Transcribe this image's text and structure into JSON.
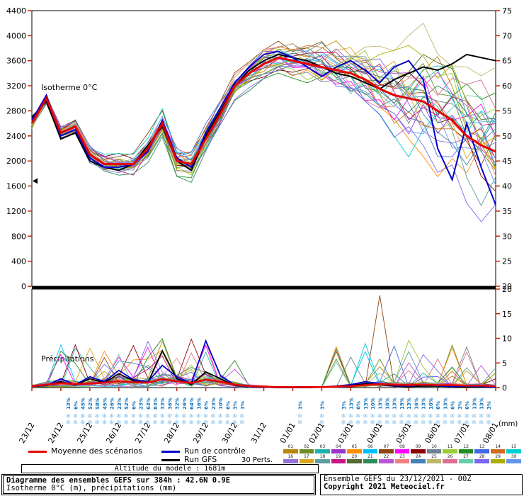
{
  "colors": {
    "mean": "#e60000",
    "control": "#0000cc",
    "gfs": "#000000",
    "tick": "#cc2200",
    "axis": "#000000",
    "snowflake": "#8ec6f0",
    "snow_pct_text": "#1573bb"
  },
  "legend": {
    "mean_label": "Moyenne des scénarios",
    "control_label": "Run de contrôle",
    "gfs_label": "Run GFS",
    "perts_label": "30 Perts.",
    "pert_numbers": [
      "01",
      "02",
      "03",
      "04",
      "05",
      "06",
      "07",
      "08",
      "09",
      "10",
      "11",
      "12",
      "13",
      "14",
      "15",
      "16",
      "17",
      "18",
      "19",
      "20",
      "21",
      "22",
      "23",
      "24",
      "25",
      "26",
      "27",
      "28",
      "29",
      "30"
    ]
  },
  "footer": {
    "altitude_label": "Altitude du modele : 1681m",
    "left_line1": "Diagramme des ensembles GEFS sur 384h : 42.6N 0.9E",
    "left_line2": "Isotherme 0°C (m), précipitations (mm)",
    "right_line1": "Ensemble GEFS du 23/12/2021 - 00Z",
    "right_line2": "Copyright 2021 Meteociel.fr"
  },
  "chart_data": {
    "type": "line",
    "title": "Diagramme des ensembles GEFS sur 384h : 42.6N 0.9E",
    "x_total_hours": 384,
    "x_step_hours": 12,
    "x_tick_labels": [
      "23/12",
      "24/12",
      "25/12",
      "26/12",
      "27/12",
      "28/12",
      "29/12",
      "30/12",
      "31/12",
      "01/01",
      "02/01",
      "03/01",
      "04/01",
      "05/01",
      "06/01",
      "07/01",
      "08/01"
    ],
    "top": {
      "label": "Isotherme 0°C",
      "ylabel_unit": "m",
      "ylim": [
        0,
        4400
      ],
      "yticks": [
        0,
        400,
        800,
        1200,
        1600,
        2000,
        2400,
        2800,
        3200,
        3600,
        4000,
        4400
      ],
      "right_ylim": [
        20,
        75
      ],
      "right_yticks": [
        20,
        25,
        30,
        35,
        40,
        45,
        50,
        55,
        60,
        65,
        70,
        75
      ],
      "model_altitude_m": 1681,
      "mean": [
        2600,
        3000,
        2450,
        2550,
        2100,
        1950,
        1950,
        1950,
        2200,
        2600,
        2000,
        1950,
        2350,
        2750,
        3200,
        3400,
        3550,
        3650,
        3600,
        3550,
        3500,
        3450,
        3400,
        3300,
        3150,
        3050,
        3000,
        2950,
        2800,
        2650,
        2400,
        2250,
        2150
      ],
      "control": [
        2650,
        3050,
        2400,
        2500,
        2050,
        1900,
        1900,
        1950,
        2150,
        2650,
        2050,
        1900,
        2450,
        2850,
        3250,
        3500,
        3700,
        3750,
        3650,
        3500,
        3350,
        3500,
        3600,
        3450,
        3250,
        3500,
        3600,
        3300,
        2200,
        1700,
        2600,
        1900,
        1300
      ],
      "gfs": [
        2700,
        2950,
        2350,
        2450,
        2000,
        1900,
        1850,
        1950,
        2250,
        2550,
        2000,
        1850,
        2400,
        2800,
        3200,
        3450,
        3600,
        3700,
        3650,
        3600,
        3500,
        3400,
        3350,
        3250,
        3150,
        3300,
        3400,
        3500,
        3450,
        3550,
        3700,
        3650,
        3600
      ],
      "member_spread": [
        120,
        130,
        140,
        150,
        160,
        170,
        185,
        200,
        220,
        240,
        265,
        285,
        265,
        250,
        240,
        240,
        250,
        270,
        310,
        360,
        430,
        500,
        570,
        640,
        720,
        800,
        870,
        940,
        1000,
        1060,
        1110,
        1160,
        1200
      ]
    },
    "precip": {
      "label": "Précipitations",
      "unit_label": "(mm)",
      "ylim": [
        0,
        20
      ],
      "right_yticks": [
        0,
        5,
        10,
        15,
        20
      ],
      "mean": [
        0.3,
        0.6,
        0.9,
        0.7,
        0.8,
        1.0,
        1.3,
        1.1,
        1.0,
        1.7,
        1.3,
        0.9,
        1.6,
        1.2,
        0.6,
        0.3,
        0.2,
        0.1,
        0.1,
        0.1,
        0.1,
        0.2,
        0.3,
        0.5,
        0.7,
        0.6,
        0.5,
        0.6,
        0.5,
        0.5,
        0.4,
        0.4,
        0.3
      ],
      "control": [
        0.2,
        0.4,
        1.8,
        0.6,
        2.2,
        1.2,
        3.5,
        1.6,
        1.2,
        4.5,
        2.2,
        0.8,
        9.5,
        2.5,
        0.5,
        0.2,
        0.1,
        0,
        0,
        0,
        0.1,
        0.3,
        0.6,
        1.2,
        0.8,
        0.4,
        0.3,
        0.5,
        0.4,
        0.2,
        0.3,
        0.2,
        0.1
      ],
      "gfs": [
        0.2,
        0.5,
        1.2,
        0.5,
        1.8,
        1.0,
        2.8,
        1.4,
        1.0,
        7.5,
        1.8,
        0.6,
        3.2,
        1.8,
        0.4,
        0.2,
        0.1,
        0,
        0,
        0,
        0.1,
        0.2,
        0.4,
        0.8,
        0.6,
        0.3,
        0.2,
        0.3,
        0.3,
        0.2,
        0.2,
        0.1,
        0.1
      ],
      "notable_spikes": [
        {
          "member": 6,
          "index": 24,
          "value": 18.7
        },
        {
          "member": 10,
          "index": 26,
          "value": 9.6
        },
        {
          "member": 2,
          "index": 12,
          "value": 7.2
        },
        {
          "member": 18,
          "index": 9,
          "value": 6.4
        },
        {
          "member": 25,
          "index": 28,
          "value": 5.8
        }
      ]
    },
    "snow_probability": {
      "groups": [
        {
          "start_hour": 30,
          "step": 6,
          "pcts": [
            13,
            6,
            45,
            52,
            58,
            45,
            26,
            23,
            52,
            6,
            23,
            63,
            83,
            33,
            36,
            32,
            26,
            64,
            16,
            6,
            23,
            10,
            6,
            3,
            3
          ]
        },
        {
          "start_hour": 222,
          "step": 18,
          "pcts": [
            3,
            3
          ]
        },
        {
          "start_hour": 258,
          "step": 6,
          "pcts": [
            3,
            13,
            6,
            13,
            10,
            13,
            16,
            13,
            19,
            13,
            16,
            13,
            10,
            6,
            13,
            6,
            3,
            6,
            13,
            13,
            3
          ]
        }
      ]
    },
    "members": {
      "count": 30,
      "seed": 1234,
      "colors": [
        "#b8860b",
        "#6b8e23",
        "#20b2aa",
        "#9932cc",
        "#ff8c00",
        "#00bfff",
        "#8b4513",
        "#ff00ff",
        "#8b0000",
        "#708090",
        "#9acd32",
        "#228b22",
        "#4169e1",
        "#d2691e",
        "#00ced1",
        "#9370db",
        "#daa520",
        "#5f9ea0",
        "#c71585",
        "#556b2f",
        "#2e8b57",
        "#ba55d3",
        "#f08080",
        "#4682b4",
        "#bdb76b",
        "#db7093",
        "#66cdaa",
        "#7b68ee",
        "#adad00",
        "#6495ed"
      ]
    }
  }
}
